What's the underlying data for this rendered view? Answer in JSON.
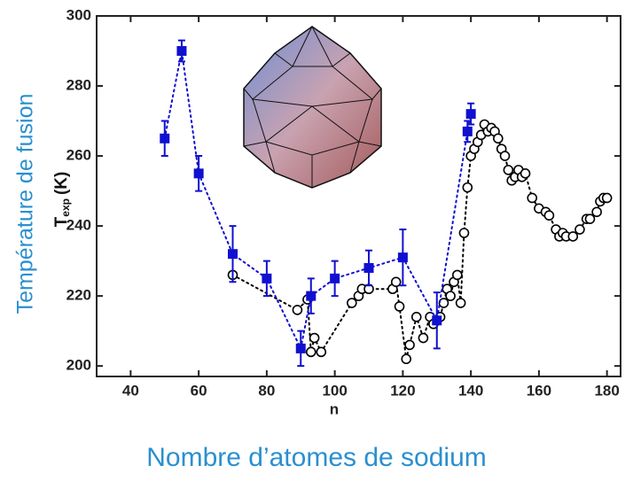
{
  "chart_data": {
    "type": "scatter",
    "x_label": "n",
    "y_label": {
      "symbol": "T",
      "subscript": "exp",
      "unit": "(K)"
    },
    "caption_y": "Température de fusion",
    "caption_x": "Nombre d’atomes de sodium",
    "xlim": [
      30,
      184
    ],
    "ylim": [
      197,
      300
    ],
    "xticks": [
      40,
      60,
      80,
      100,
      120,
      140,
      160,
      180
    ],
    "yticks": [
      200,
      220,
      240,
      260,
      280,
      300
    ],
    "series": [
      {
        "color": "#1010d0",
        "marker": "square",
        "x": [
          50,
          55,
          60,
          70,
          80,
          90,
          93,
          100,
          110,
          120,
          130,
          139,
          140
        ],
        "values": [
          265,
          290,
          255,
          232,
          225,
          205,
          220,
          225,
          228,
          231,
          213,
          267,
          272
        ],
        "errors": [
          5,
          3,
          5,
          8,
          5,
          5,
          5,
          5,
          5,
          8,
          8,
          3,
          3
        ]
      },
      {
        "color": "#000000",
        "marker": "circle",
        "x": [
          70,
          89,
          92,
          93,
          94,
          96,
          105,
          107,
          108,
          110,
          117,
          118,
          119,
          121,
          122,
          124,
          126,
          128,
          129,
          131,
          132,
          133,
          134,
          135,
          136,
          137,
          138,
          139,
          140,
          141,
          142,
          143,
          144,
          145,
          146,
          147,
          148,
          149,
          150,
          151,
          152,
          153,
          154,
          155,
          156,
          158,
          160,
          162,
          163,
          165,
          166,
          167,
          168,
          170,
          172,
          174,
          175,
          177,
          178,
          179,
          180
        ],
        "values": [
          226,
          216,
          219,
          204,
          208,
          204,
          218,
          220,
          222,
          222,
          222,
          224,
          217,
          202,
          206,
          214,
          208,
          214,
          212,
          214,
          218,
          222,
          220,
          224,
          226,
          218,
          238,
          251,
          260,
          262,
          264,
          266,
          269,
          267,
          268,
          267,
          265,
          262,
          260,
          256,
          253,
          254,
          256,
          254,
          255,
          248,
          245,
          244,
          243,
          239,
          237,
          238,
          237,
          237,
          239,
          242,
          242,
          244,
          247,
          248,
          248
        ]
      }
    ]
  }
}
